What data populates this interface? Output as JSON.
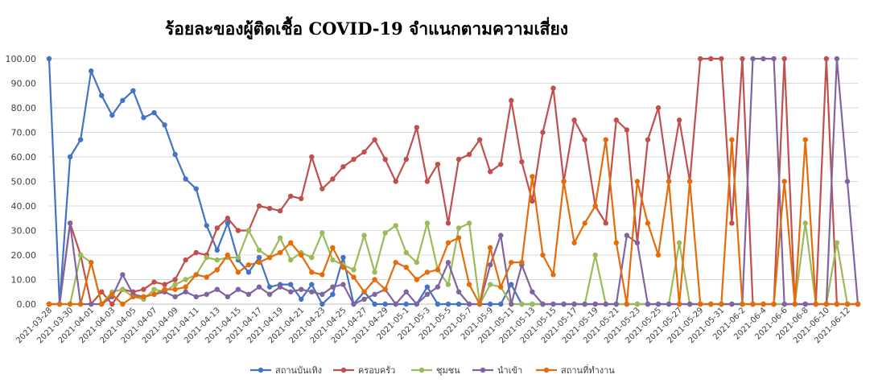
{
  "chart_data": {
    "type": "line",
    "title": "ร้อยละของผู้ติดเชื้อ COVID-19 จำแนกตามความเสี่ยง",
    "ylim": [
      0,
      100
    ],
    "ytick_labels": [
      "0.00",
      "10.00",
      "20.00",
      "30.00",
      "40.00",
      "50.00",
      "60.00",
      "70.00",
      "80.00",
      "90.00",
      "100.00"
    ],
    "ytick_values": [
      0,
      10,
      20,
      30,
      40,
      50,
      60,
      70,
      80,
      90,
      100
    ],
    "grid": true,
    "legend_position": "bottom",
    "categories": [
      "2021-03-28",
      "2021-03-29",
      "2021-03-30",
      "2021-03-31",
      "2021-04-01",
      "2021-04-02",
      "2021-04-03",
      "2021-04-04",
      "2021-04-05",
      "2021-04-06",
      "2021-04-07",
      "2021-04-08",
      "2021-04-09",
      "2021-04-10",
      "2021-04-11",
      "2021-04-12",
      "2021-04-13",
      "2021-04-14",
      "2021-04-15",
      "2021-04-16",
      "2021-04-17",
      "2021-04-18",
      "2021-04-19",
      "2021-04-20",
      "2021-04-21",
      "2021-04-22",
      "2021-04-23",
      "2021-04-24",
      "2021-04-25",
      "2021-04-26",
      "2021-04-27",
      "2021-04-28",
      "2021-04-29",
      "2021-04-30",
      "2021-05-1",
      "2021-05-2",
      "2021-05-3",
      "2021-05-4",
      "2021-05-5",
      "2021-05-6",
      "2021-05-7",
      "2021-05-8",
      "2021-05-9",
      "2021-05-10",
      "2021-05-11",
      "2021-05-12",
      "2021-05-13",
      "2021-05-14",
      "2021-05-15",
      "2021-05-16",
      "2021-05-17",
      "2021-05-18",
      "2021-05-19",
      "2021-05-20",
      "2021-05-21",
      "2021-05-22",
      "2021-05-23",
      "2021-05-24",
      "2021-05-25",
      "2021-05-26",
      "2021-05-27",
      "2021-05-28",
      "2021-05-29",
      "2021-05-30",
      "2021-05-31",
      "2021-06-1",
      "2021-06-2",
      "2021-06-3",
      "2021-06-4",
      "2021-06-5",
      "2021-06-6",
      "2021-06-7",
      "2021-06-8",
      "2021-06-9",
      "2021-06-10",
      "2021-06-11",
      "2021-06-12",
      "2021-06-13"
    ],
    "xtick_labels": [
      "2021-03-28",
      "2021-03-30",
      "2021-04-01",
      "2021-04-03",
      "2021-04-05",
      "2021-04-07",
      "2021-04-09",
      "2021-04-11",
      "2021-04-13",
      "2021-04-15",
      "2021-04-17",
      "2021-04-19",
      "2021-04-21",
      "2021-04-23",
      "2021-04-25",
      "2021-04-27",
      "2021-04-29",
      "2021-05-1",
      "2021-05-3",
      "2021-05-5",
      "2021-05-7",
      "2021-05-9",
      "2021-05-11",
      "2021-05-13",
      "2021-05-15",
      "2021-05-17",
      "2021-05-19",
      "2021-05-21",
      "2021-05-23",
      "2021-05-25",
      "2021-05-27",
      "2021-05-29",
      "2021-05-31",
      "2021-06-2",
      "2021-06-4",
      "2021-06-6",
      "2021-06-8",
      "2021-06-10",
      "2021-06-12"
    ],
    "series": [
      {
        "name": "สถานบันเทิง",
        "color": "#4472C4",
        "values": [
          100,
          0,
          60,
          67,
          95,
          85,
          77,
          83,
          87,
          76,
          78,
          73,
          61,
          51,
          47,
          32,
          22,
          33,
          18,
          13,
          19,
          7,
          8,
          8,
          2,
          8,
          0,
          4,
          19,
          0,
          5,
          0,
          0,
          0,
          0,
          0,
          7,
          0,
          0,
          0,
          0,
          0,
          0,
          0,
          8,
          0,
          0,
          0,
          0,
          0,
          0,
          0,
          0,
          0,
          0,
          0,
          0,
          0,
          0,
          0,
          0,
          0,
          0,
          0,
          0,
          0,
          0,
          0,
          0,
          0,
          0,
          0,
          0,
          0,
          0,
          0,
          0,
          0
        ]
      },
      {
        "name": "ครอบครัว",
        "color": "#C0504D",
        "values": [
          0,
          0,
          33,
          20,
          0,
          5,
          0,
          6,
          5,
          6,
          9,
          8,
          10,
          18,
          21,
          20,
          31,
          35,
          30,
          30,
          40,
          39,
          38,
          44,
          43,
          60,
          47,
          51,
          56,
          59,
          62,
          67,
          59,
          50,
          59,
          72,
          50,
          57,
          33,
          59,
          61,
          67,
          54,
          57,
          83,
          58,
          42,
          70,
          88,
          50,
          75,
          67,
          40,
          33,
          75,
          71,
          25,
          67,
          80,
          50,
          75,
          50,
          100,
          100,
          100,
          33,
          100,
          0,
          0,
          0,
          100,
          0,
          0,
          0,
          100,
          0,
          0,
          0
        ]
      },
      {
        "name": "ชุมชน",
        "color": "#9BBB59",
        "values": [
          0,
          0,
          0,
          20,
          17,
          0,
          5,
          6,
          3,
          2,
          6,
          5,
          8,
          10,
          12,
          19,
          18,
          19,
          19,
          30,
          22,
          19,
          27,
          18,
          21,
          19,
          29,
          18,
          16,
          14,
          28,
          13,
          29,
          32,
          21,
          17,
          33,
          14,
          8,
          31,
          33,
          0,
          8,
          7,
          0,
          0,
          0,
          0,
          0,
          0,
          0,
          0,
          20,
          0,
          0,
          0,
          0,
          0,
          0,
          0,
          25,
          0,
          0,
          0,
          0,
          0,
          0,
          0,
          0,
          0,
          0,
          0,
          33,
          0,
          0,
          25,
          0,
          0
        ]
      },
      {
        "name": "นำเข้า",
        "color": "#8064A2",
        "values": [
          0,
          0,
          33,
          0,
          0,
          0,
          3,
          12,
          4,
          3,
          4,
          5,
          3,
          5,
          3,
          4,
          6,
          3,
          6,
          4,
          7,
          4,
          7,
          5,
          6,
          5,
          4,
          7,
          8,
          0,
          2,
          4,
          6,
          0,
          5,
          0,
          4,
          7,
          17,
          5,
          0,
          0,
          16,
          28,
          0,
          16,
          5,
          0,
          0,
          0,
          0,
          0,
          0,
          0,
          0,
          28,
          25,
          0,
          0,
          0,
          0,
          0,
          0,
          0,
          0,
          0,
          0,
          100,
          100,
          100,
          0,
          0,
          0,
          0,
          0,
          100,
          50,
          0
        ]
      },
      {
        "name": "สถานที่ทำงาน",
        "color": "#E46C0A",
        "values": [
          0,
          0,
          0,
          0,
          17,
          0,
          4,
          0,
          3,
          3,
          4,
          6,
          6,
          7,
          12,
          11,
          14,
          20,
          13,
          16,
          17,
          19,
          21,
          25,
          20,
          13,
          12,
          23,
          15,
          11,
          5,
          10,
          6,
          17,
          15,
          10,
          13,
          14,
          25,
          27,
          8,
          0,
          23,
          7,
          17,
          17,
          52,
          20,
          12,
          50,
          25,
          33,
          40,
          67,
          25,
          0,
          50,
          33,
          20,
          50,
          0,
          50,
          0,
          0,
          0,
          67,
          0,
          0,
          0,
          0,
          50,
          0,
          67,
          0,
          0,
          0,
          0,
          0
        ]
      }
    ]
  }
}
